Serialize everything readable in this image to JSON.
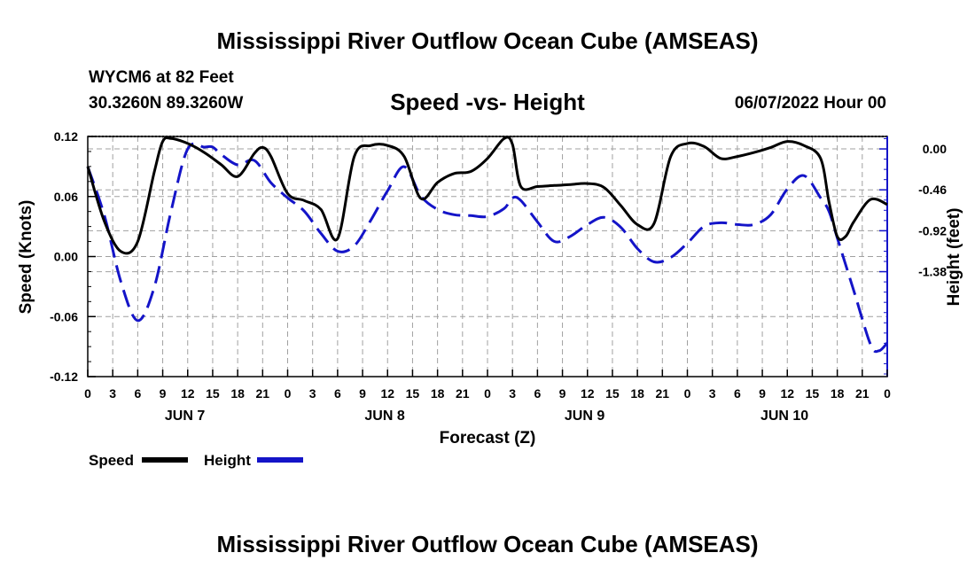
{
  "header": {
    "title": "Mississippi River Outflow Ocean Cube (AMSEAS)",
    "station": "WYCM6 at 82 Feet",
    "coords": "30.3260N  89.3260W",
    "subtitle": "Speed -vs- Height",
    "datetime": "06/07/2022 Hour 00"
  },
  "footer": {
    "title": "Mississippi River Outflow Ocean Cube (AMSEAS)"
  },
  "colors": {
    "speed": "#000000",
    "height": "#1414c8",
    "grid": "#a0a0a0"
  },
  "chart_data": {
    "type": "line",
    "title": "Speed -vs- Height",
    "xlabel": "Forecast (Z)",
    "ylabel": "Speed (Knots)",
    "y2label": "Height (feet)",
    "x_unit": "hours from 06/07/2022 00Z",
    "xlim": [
      0,
      96
    ],
    "ylim": [
      -0.12,
      0.12
    ],
    "y2lim": [
      -2.56,
      0.14
    ],
    "yticks": [
      "0.12",
      "0.06",
      "0.00",
      "-0.06",
      "-0.12"
    ],
    "y2ticks": [
      "0.00",
      "-0.46",
      "-0.92",
      "-1.38"
    ],
    "xtick_labels": [
      "0",
      "3",
      "6",
      "9",
      "12",
      "15",
      "18",
      "21",
      "0",
      "3",
      "6",
      "9",
      "12",
      "15",
      "18",
      "21",
      "0",
      "3",
      "6",
      "9",
      "12",
      "15",
      "18",
      "21",
      "0",
      "3",
      "6",
      "9",
      "12",
      "15",
      "18",
      "21",
      "0"
    ],
    "day_labels": [
      "JUN 7",
      "JUN 8",
      "JUN 9",
      "JUN 10"
    ],
    "grid": true,
    "legend": {
      "position": "bottom-left",
      "entries": [
        "Speed",
        "Height"
      ]
    },
    "series": [
      {
        "name": "Speed",
        "x": [
          0,
          2,
          4,
          6,
          8,
          9,
          10,
          12,
          14,
          16,
          18,
          20,
          21,
          22,
          24,
          26,
          28,
          30,
          32,
          34,
          36,
          38,
          40,
          42,
          44,
          46,
          48,
          50,
          51,
          52,
          54,
          56,
          58,
          60,
          62,
          64,
          66,
          68,
          70,
          72,
          74,
          76,
          78,
          80,
          82,
          84,
          86,
          88,
          89,
          90,
          91,
          92,
          94,
          96
        ],
        "values": [
          0.09,
          0.035,
          0.005,
          0.015,
          0.085,
          0.115,
          0.118,
          0.113,
          0.104,
          0.092,
          0.08,
          0.103,
          0.109,
          0.1,
          0.063,
          0.056,
          0.047,
          0.018,
          0.1,
          0.111,
          0.111,
          0.1,
          0.058,
          0.074,
          0.083,
          0.085,
          0.098,
          0.118,
          0.112,
          0.07,
          0.07,
          0.071,
          0.072,
          0.073,
          0.069,
          0.051,
          0.032,
          0.033,
          0.1,
          0.113,
          0.11,
          0.098,
          0.1,
          0.104,
          0.109,
          0.115,
          0.111,
          0.098,
          0.055,
          0.02,
          0.02,
          0.035,
          0.057,
          0.052
        ]
      },
      {
        "name": "Height",
        "x": [
          0,
          2,
          4,
          6,
          8,
          10,
          12,
          14,
          15,
          16,
          18,
          20,
          22,
          24,
          26,
          28,
          30,
          32,
          34,
          36,
          38,
          40,
          42,
          44,
          46,
          48,
          50,
          51,
          52,
          54,
          56,
          58,
          60,
          62,
          64,
          66,
          68,
          70,
          72,
          74,
          76,
          78,
          80,
          82,
          84,
          86,
          88,
          89,
          90,
          92,
          94,
          95,
          96
        ],
        "values": [
          -0.2,
          -0.75,
          -1.5,
          -1.93,
          -1.55,
          -0.7,
          0.0,
          0.02,
          0.02,
          -0.06,
          -0.18,
          -0.13,
          -0.38,
          -0.55,
          -0.7,
          -0.95,
          -1.15,
          -1.09,
          -0.8,
          -0.47,
          -0.2,
          -0.53,
          -0.68,
          -0.74,
          -0.75,
          -0.76,
          -0.67,
          -0.55,
          -0.58,
          -0.82,
          -1.04,
          -0.98,
          -0.85,
          -0.77,
          -0.88,
          -1.12,
          -1.27,
          -1.22,
          -1.06,
          -0.87,
          -0.83,
          -0.85,
          -0.85,
          -0.74,
          -0.45,
          -0.3,
          -0.55,
          -0.7,
          -1.0,
          -1.6,
          -2.2,
          -2.27,
          -2.18
        ]
      }
    ]
  }
}
